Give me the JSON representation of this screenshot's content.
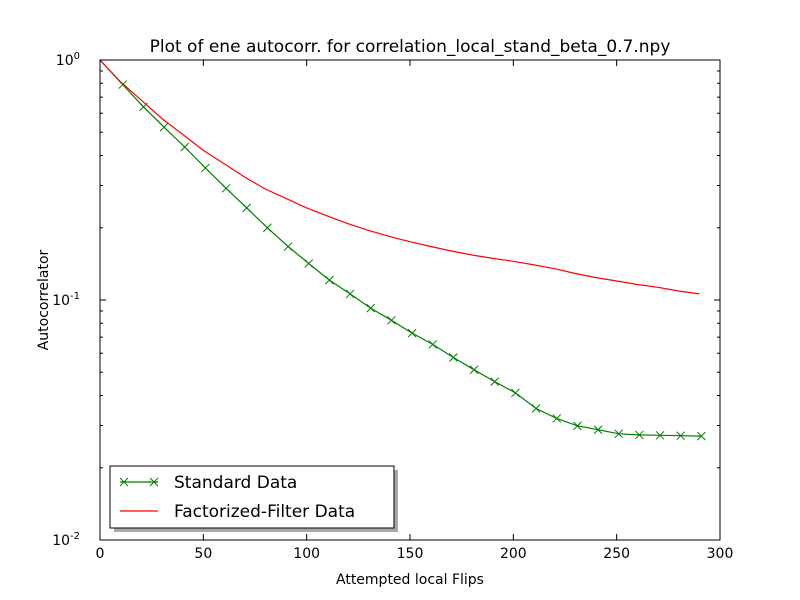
{
  "chart_data": {
    "type": "line",
    "title": "Plot of ene autocorr. for correlation_local_stand_beta_0.7.npy",
    "xlabel": "Attempted local Flips",
    "ylabel": "Autocorrelator",
    "xlim": [
      0,
      300
    ],
    "ylim": [
      0.01,
      1
    ],
    "yscale": "log",
    "grid": false,
    "legend_position": "lower-left",
    "xticks": [
      0,
      50,
      100,
      150,
      200,
      250,
      300
    ],
    "xtick_labels": [
      "0",
      "50",
      "100",
      "150",
      "200",
      "250",
      "300"
    ],
    "yticks": [
      {
        "value": 1,
        "base": "10",
        "exp": "0"
      },
      {
        "value": 0.1,
        "base": "10",
        "exp": "-1"
      },
      {
        "value": 0.01,
        "base": "10",
        "exp": "-2"
      }
    ],
    "series": [
      {
        "name": "Standard Data",
        "color": "#008000",
        "marker": "x",
        "x": [
          0,
          11,
          21,
          31,
          41,
          51,
          61,
          71,
          81,
          91,
          101,
          111,
          121,
          131,
          141,
          151,
          161,
          171,
          181,
          191,
          201,
          211,
          221,
          231,
          241,
          251,
          261,
          271,
          281,
          291
        ],
        "y": [
          1.0,
          0.79,
          0.638,
          0.525,
          0.434,
          0.355,
          0.292,
          0.242,
          0.2,
          0.167,
          0.142,
          0.121,
          0.106,
          0.0925,
          0.0823,
          0.0728,
          0.0653,
          0.0576,
          0.0512,
          0.0457,
          0.041,
          0.0353,
          0.0321,
          0.0299,
          0.0288,
          0.0277,
          0.0274,
          0.0273,
          0.0272,
          0.0271
        ],
        "markers_from_index": 1
      },
      {
        "name": "Factorized-Filter Data",
        "color": "#ff0000",
        "marker": "none",
        "x": [
          0,
          10,
          20,
          30,
          40,
          50,
          60,
          70,
          80,
          90,
          100,
          110,
          120,
          130,
          140,
          150,
          160,
          170,
          180,
          190,
          200,
          210,
          220,
          230,
          240,
          250,
          260,
          270,
          280,
          290
        ],
        "y": [
          1.0,
          0.81,
          0.68,
          0.57,
          0.49,
          0.42,
          0.37,
          0.325,
          0.29,
          0.265,
          0.242,
          0.224,
          0.208,
          0.195,
          0.184,
          0.175,
          0.167,
          0.16,
          0.154,
          0.149,
          0.145,
          0.14,
          0.135,
          0.129,
          0.124,
          0.12,
          0.116,
          0.113,
          0.109,
          0.106
        ]
      }
    ]
  }
}
